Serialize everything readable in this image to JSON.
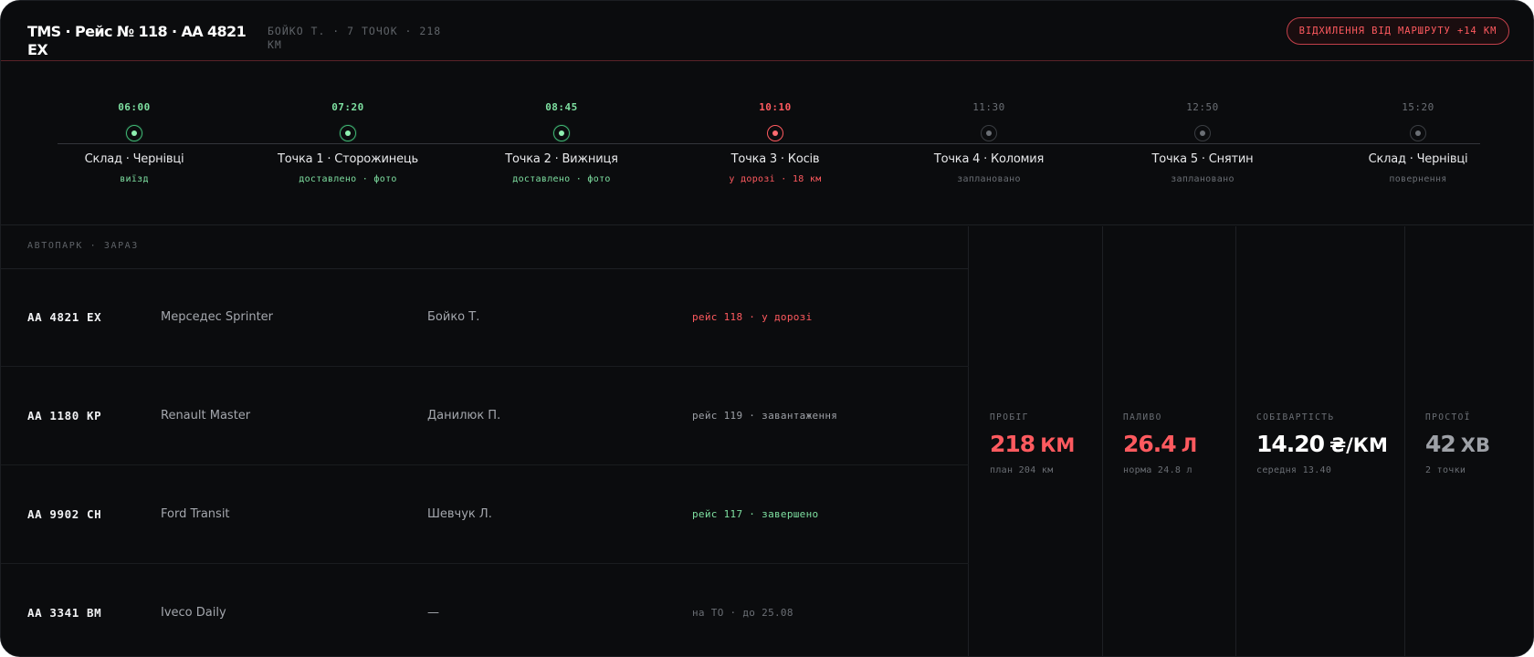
{
  "header": {
    "title": "TMS · Рейс № 118 · AA 4821 EX",
    "meta": "БОЙКО Т. · 7 ТОЧОК · 218 КМ",
    "alert": "ВІДХИЛЕННЯ ВІД МАРШРУТУ +14 КМ"
  },
  "timeline": {
    "stops": [
      {
        "time": "06:00",
        "name": "Склад · Чернівці",
        "status": "виїзд",
        "state": "done"
      },
      {
        "time": "07:20",
        "name": "Точка 1 · Сторожинець",
        "status": "доставлено · фото",
        "state": "done"
      },
      {
        "time": "08:45",
        "name": "Точка 2 · Вижниця",
        "status": "доставлено · фото",
        "state": "done"
      },
      {
        "time": "10:10",
        "name": "Точка 3 · Косів",
        "status": "у дорозі · 18 км",
        "state": "active"
      },
      {
        "time": "11:30",
        "name": "Точка 4 · Коломия",
        "status": "заплановано",
        "state": "planned"
      },
      {
        "time": "12:50",
        "name": "Точка 5 · Снятин",
        "status": "заплановано",
        "state": "planned"
      },
      {
        "time": "15:20",
        "name": "Склад · Чернівці",
        "status": "повернення",
        "state": "planned"
      }
    ]
  },
  "fleet": {
    "label": "АВТОПАРК · ЗАРАЗ",
    "rows": [
      {
        "plate": "AA 4821 EX",
        "model": "Мерседес Sprinter",
        "driver": "Бойко Т.",
        "status": "рейс 118 · у дорозі",
        "tone": "red"
      },
      {
        "plate": "AA 1180 KP",
        "model": "Renault Master",
        "driver": "Данилюк П.",
        "status": "рейс 119 · завантаження",
        "tone": "gray"
      },
      {
        "plate": "AA 9902 CH",
        "model": "Ford Transit",
        "driver": "Шевчук Л.",
        "status": "рейс 117 · завершено",
        "tone": "green"
      },
      {
        "plate": "AA 3341 BM",
        "model": "Iveco Daily",
        "driver": "—",
        "status": "на ТО · до 25.08",
        "tone": "dim"
      }
    ]
  },
  "metrics": [
    {
      "label": "ПРОБІГ",
      "value": "218",
      "unit": "КМ",
      "sub": "план 204 км",
      "color": "#ff5a5f"
    },
    {
      "label": "ПАЛИВО",
      "value": "26.4",
      "unit": "Л",
      "sub": "норма 24.8 л",
      "color": "#ff5a5f"
    },
    {
      "label": "СОБІВАРТІСТЬ",
      "value": "14.20",
      "unit": "₴/КМ",
      "sub": "середня 13.40",
      "color": "#ffffff"
    },
    {
      "label": "ПРОСТОЇ",
      "value": "42",
      "unit": "ХВ",
      "sub": "2 точки",
      "color": "#9ea1a7"
    }
  ]
}
